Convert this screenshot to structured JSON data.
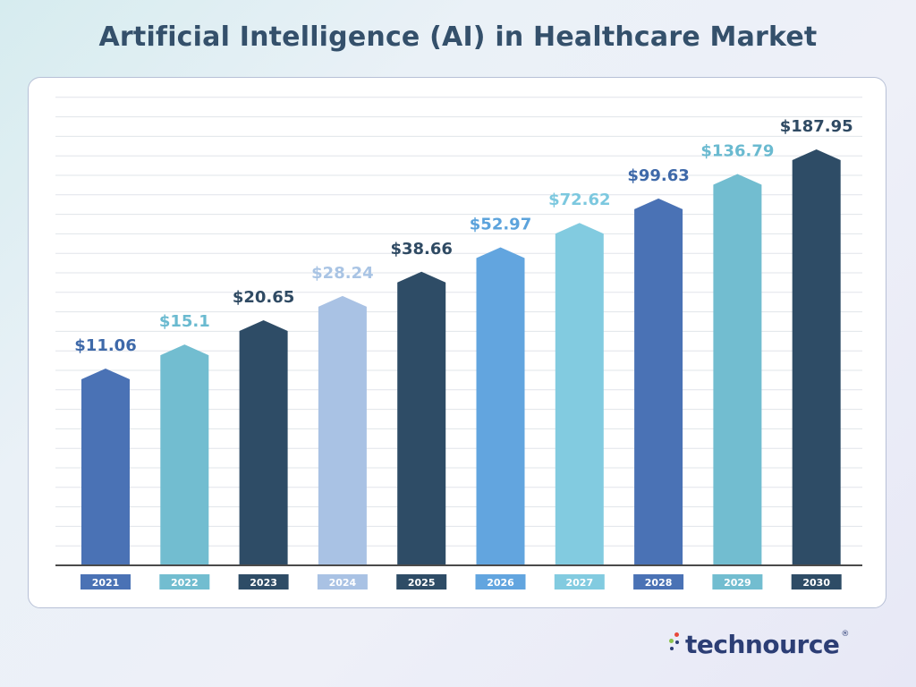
{
  "chart_data": {
    "type": "bar",
    "title": "Artificial Intelligence (AI) in Healthcare Market",
    "categories": [
      "2021",
      "2022",
      "2023",
      "2024",
      "2025",
      "2026",
      "2027",
      "2028",
      "2029",
      "2030"
    ],
    "values": [
      11.06,
      15.1,
      20.65,
      28.24,
      38.66,
      52.97,
      72.62,
      99.63,
      136.79,
      187.95
    ],
    "data_labels": [
      "$11.06",
      "$15.1",
      "$20.65",
      "$28.24",
      "$38.66",
      "$52.97",
      "$72.62",
      "$99.63",
      "$136.79",
      "$187.95"
    ],
    "bar_colors": [
      "#4a72b5",
      "#72bdd0",
      "#2e4c66",
      "#a9c2e4",
      "#2e4c66",
      "#62a5df",
      "#82cbe0",
      "#4a72b5",
      "#72bdd0",
      "#2e4c66"
    ],
    "label_colors": [
      "#3e69a9",
      "#6abad0",
      "#2f4a63",
      "#a9c4e4",
      "#2f4a63",
      "#5ca3dc",
      "#7cc8df",
      "#3e69a9",
      "#6abad0",
      "#2f4a63"
    ],
    "grid": true,
    "legend": "none"
  },
  "brand": {
    "name": "technource",
    "registered": "®"
  }
}
